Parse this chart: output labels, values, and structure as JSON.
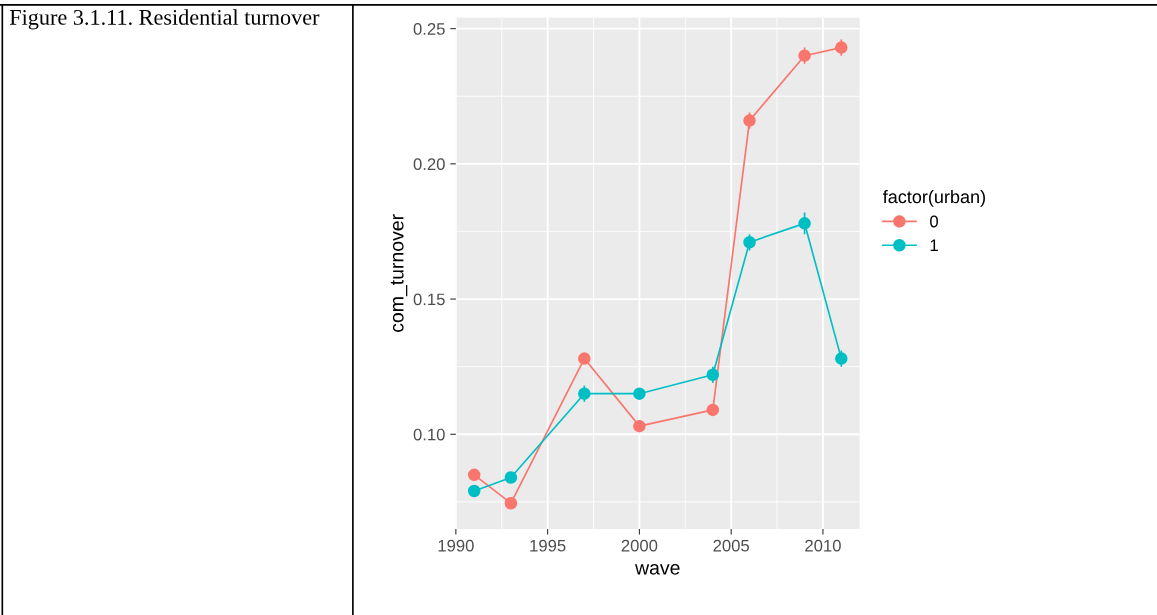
{
  "chart_data": {
    "type": "line",
    "xlabel": "wave",
    "ylabel": "com_turnover",
    "legend_title": "factor(urban)",
    "annotations": [
      "Figure 3.1.11. Residential turnover"
    ],
    "x": [
      1991,
      1993,
      1997,
      2000,
      2004,
      2006,
      2009,
      2011
    ],
    "series": [
      {
        "name": "0",
        "color": "#f8766d",
        "values": [
          0.085,
          0.0745,
          0.128,
          0.103,
          0.109,
          0.216,
          0.24,
          0.243
        ],
        "errors": [
          0.002,
          0.002,
          0.002,
          0.002,
          0.002,
          0.003,
          0.003,
          0.003
        ]
      },
      {
        "name": "1",
        "color": "#00bfc4",
        "values": [
          0.079,
          0.084,
          0.115,
          0.115,
          0.122,
          0.171,
          0.178,
          0.128
        ],
        "errors": [
          0.002,
          0.002,
          0.003,
          0.002,
          0.003,
          0.003,
          0.004,
          0.003
        ]
      }
    ],
    "xlim": [
      1990,
      2012
    ],
    "xticks": [
      1990,
      1995,
      2000,
      2005,
      2010
    ],
    "ylim": [
      0.065,
      0.254
    ],
    "yticks": [
      {
        "value": 0.1,
        "label": "0.10"
      },
      {
        "value": 0.15,
        "label": "0.15"
      },
      {
        "value": 0.2,
        "label": "0.20"
      },
      {
        "value": 0.25,
        "label": "0.25"
      }
    ],
    "grid": true,
    "legend": "right",
    "marker": "circle",
    "line_style": "solid"
  }
}
